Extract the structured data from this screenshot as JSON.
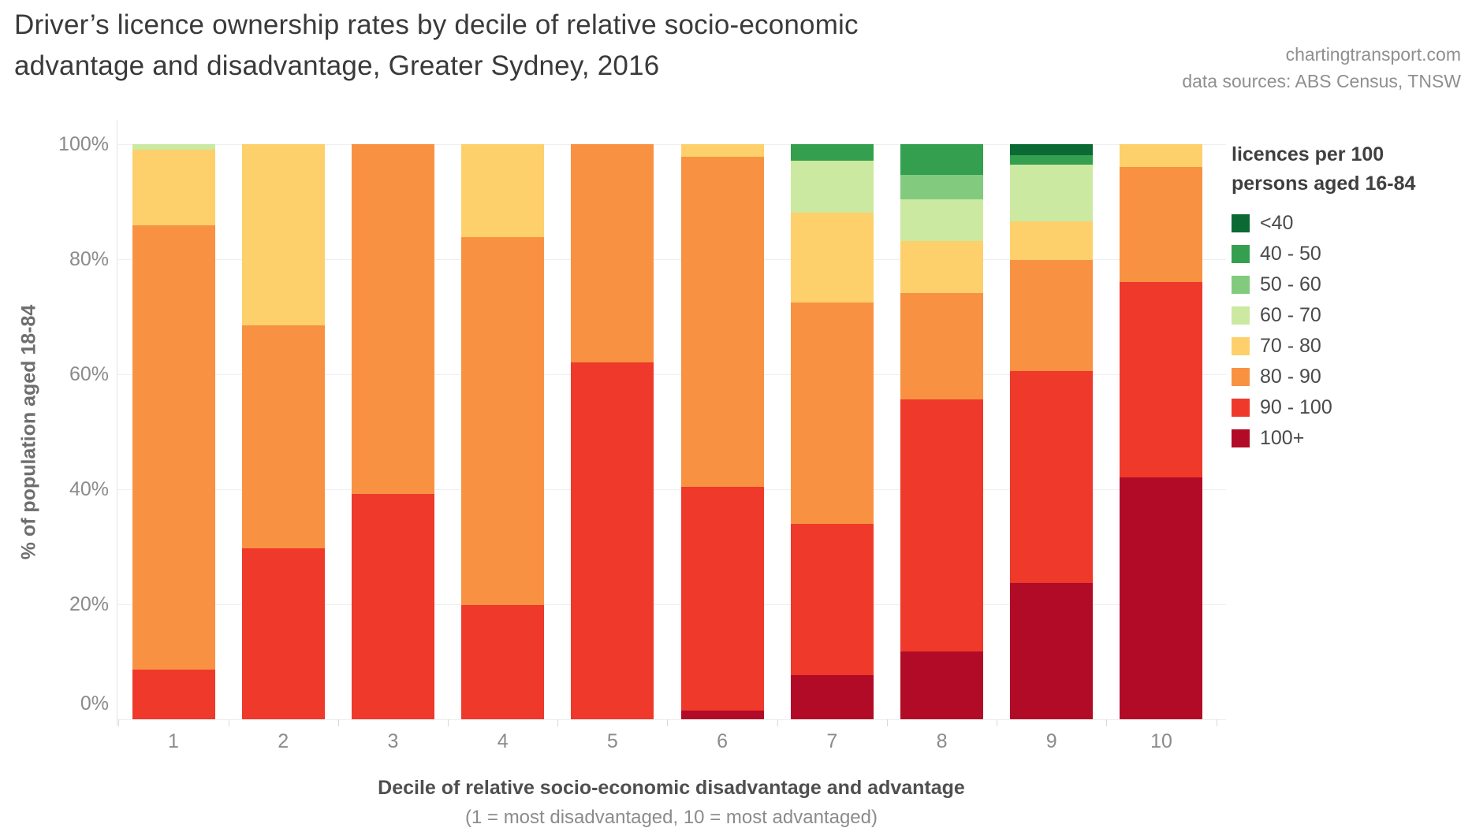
{
  "title": {
    "line1": "Driver’s licence ownership rates by decile of relative socio-economic",
    "line2": "advantage and disadvantage, Greater Sydney, 2016"
  },
  "attribution": {
    "line1": "chartingtransport.com",
    "line2": "data sources: ABS Census, TNSW"
  },
  "y_axis": {
    "title": "% of population aged 18-84",
    "tick_values": [
      0,
      20,
      40,
      60,
      80,
      100
    ],
    "tick_labels": [
      "0%",
      "20%",
      "40%",
      "60%",
      "80%",
      "100%"
    ]
  },
  "x_axis": {
    "title": "Decile of relative socio-economic disadvantage and advantage",
    "subtitle": "(1 = most disadvantaged, 10 = most advantaged)"
  },
  "legend": {
    "title_line1": "licences per 100",
    "title_line2": "persons aged 16-84"
  },
  "chart_data": {
    "type": "bar",
    "subtype": "stacked-percentage-column",
    "title": "Driver’s licence ownership rates by decile of relative socio-economic advantage and disadvantage, Greater Sydney, 2016",
    "xlabel": "Decile of relative socio-economic disadvantage and advantage (1 = most disadvantaged, 10 = most advantaged)",
    "ylabel": "% of population aged 18-84",
    "unit": "percent of population",
    "ylim": [
      0,
      100
    ],
    "grid": true,
    "legend_position": "right",
    "legend_title": "licences per 100 persons aged 16-84",
    "categories": [
      "1",
      "2",
      "3",
      "4",
      "5",
      "6",
      "7",
      "8",
      "9",
      "10"
    ],
    "series_order_note": "series listed top-of-stack first (legend order); stacking in chart is bottom-up from last series",
    "series": [
      {
        "name": "<40",
        "color": "#0b6a33",
        "values": [
          0,
          0,
          0,
          0,
          0,
          0,
          0,
          0,
          1.9,
          0
        ]
      },
      {
        "name": "40 - 50",
        "color": "#34a04f",
        "values": [
          0,
          0,
          0,
          0,
          0,
          0,
          2.9,
          5.4,
          1.6,
          0
        ]
      },
      {
        "name": "50 - 60",
        "color": "#82ca7e",
        "values": [
          0,
          0,
          0,
          0,
          0,
          0,
          0,
          4.2,
          0,
          0
        ]
      },
      {
        "name": "60 - 70",
        "color": "#cbe9a0",
        "values": [
          1.0,
          0,
          0,
          0,
          0,
          0,
          9.0,
          7.2,
          9.9,
          0
        ]
      },
      {
        "name": "70 - 80",
        "color": "#fdd06c",
        "values": [
          13.1,
          31.5,
          0,
          16.2,
          0,
          2.2,
          15.6,
          9.1,
          6.7,
          4.0
        ]
      },
      {
        "name": "80 - 90",
        "color": "#f89242",
        "values": [
          77.2,
          38.8,
          60.8,
          63.9,
          38.0,
          57.4,
          38.5,
          18.5,
          19.4,
          20.0
        ]
      },
      {
        "name": "90 - 100",
        "color": "#ee392b",
        "values": [
          8.7,
          29.7,
          39.2,
          19.9,
          62.0,
          38.9,
          26.3,
          43.8,
          36.8,
          34.0
        ]
      },
      {
        "name": "100+",
        "color": "#b20b27",
        "values": [
          0,
          0,
          0,
          0,
          0,
          1.5,
          7.7,
          11.8,
          23.7,
          42.0
        ]
      }
    ]
  }
}
